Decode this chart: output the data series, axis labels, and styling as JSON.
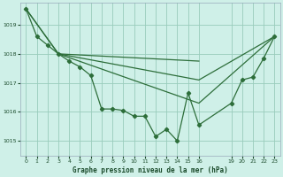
{
  "title": "Graphe pression niveau de la mer (hPa)",
  "bg_color": "#cff0e8",
  "grid_color": "#99ccbb",
  "line_color": "#2d6e3a",
  "ylim": [
    1014.5,
    1019.75
  ],
  "yticks": [
    1015,
    1016,
    1017,
    1018,
    1019
  ],
  "xlim": [
    -0.5,
    23.5
  ],
  "xtick_labels": [
    "0",
    "1",
    "2",
    "3",
    "4",
    "5",
    "6",
    "7",
    "8",
    "9",
    "10",
    "11",
    "12",
    "13",
    "14",
    "15",
    "16",
    "19",
    "20",
    "21",
    "22",
    "23"
  ],
  "xtick_positions": [
    0,
    1,
    2,
    3,
    4,
    5,
    6,
    7,
    8,
    9,
    10,
    11,
    12,
    13,
    14,
    15,
    16,
    19,
    20,
    21,
    22,
    23
  ],
  "line1_x": [
    0,
    1,
    2,
    3,
    4,
    5,
    6,
    7,
    8,
    9,
    10,
    11,
    12,
    13,
    14,
    15,
    16,
    19,
    20,
    21,
    22,
    23
  ],
  "line1_y": [
    1019.55,
    1018.6,
    1018.3,
    1018.0,
    1017.75,
    1017.55,
    1017.25,
    1016.1,
    1016.1,
    1016.05,
    1015.85,
    1015.85,
    1015.15,
    1015.4,
    1015.0,
    1016.65,
    1015.55,
    1016.3,
    1017.1,
    1017.2,
    1017.85,
    1018.6
  ],
  "line2_x": [
    0,
    3,
    16,
    23
  ],
  "line2_y": [
    1019.55,
    1018.0,
    1017.1,
    1018.6
  ],
  "line3_x": [
    0,
    3,
    16,
    23
  ],
  "line3_y": [
    1019.55,
    1018.0,
    1016.3,
    1018.6
  ],
  "line4_x": [
    3,
    16
  ],
  "line4_y": [
    1018.0,
    1017.75
  ],
  "figwidth": 3.2,
  "figheight": 2.0,
  "dpi": 100
}
